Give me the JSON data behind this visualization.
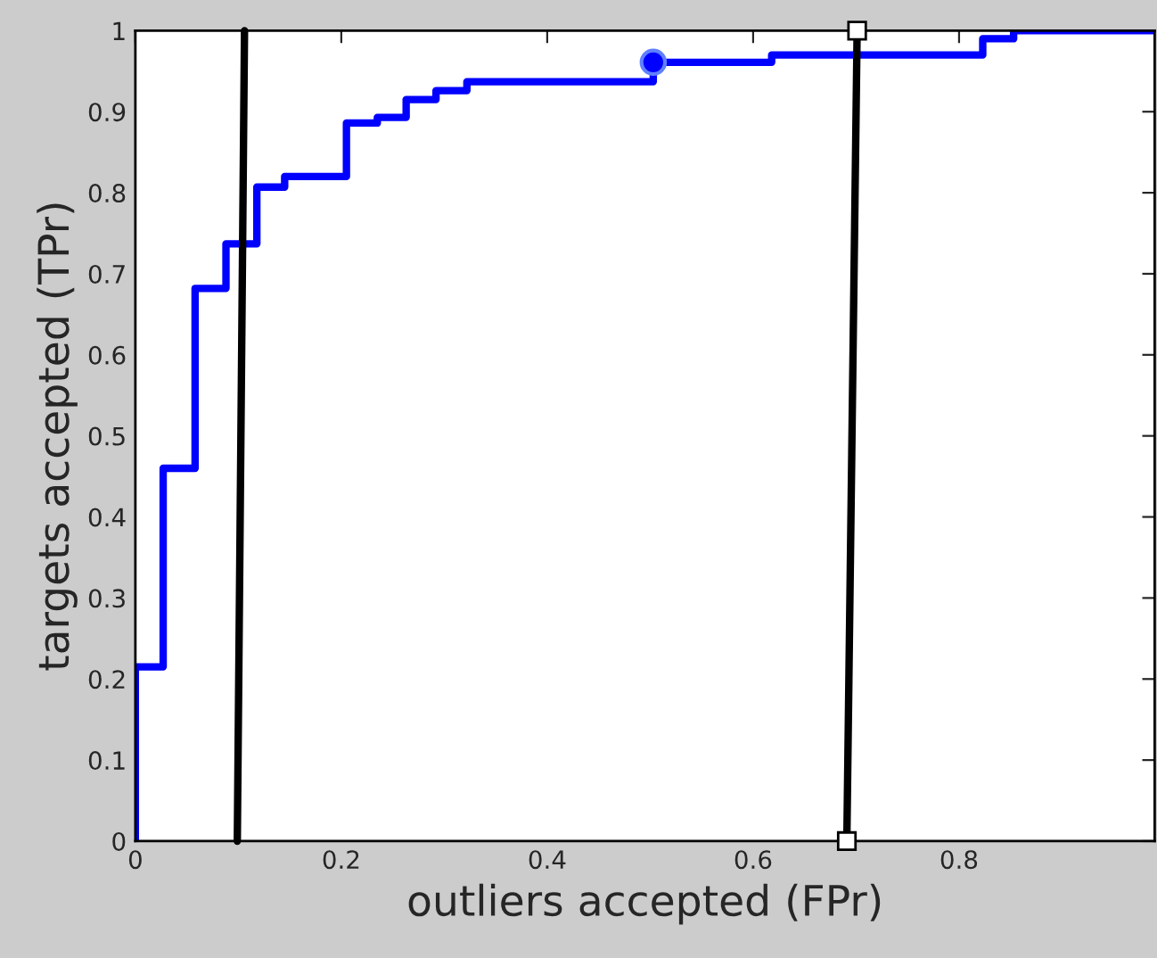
{
  "chart_data": {
    "type": "step",
    "xlabel": "outliers accepted (FPr)",
    "ylabel": "targets accepted (TPr)",
    "xlim": [
      0,
      0.99
    ],
    "ylim": [
      0,
      1
    ],
    "xticks": [
      0,
      0.2,
      0.4,
      0.6,
      0.8
    ],
    "yticks": [
      0,
      0.1,
      0.2,
      0.3,
      0.4,
      0.5,
      0.6,
      0.7,
      0.8,
      0.9,
      1
    ],
    "grid": false,
    "series": [
      {
        "color": "#0000ff",
        "x": [
          0,
          0,
          0.027,
          0.058,
          0.088,
          0.118,
          0.145,
          0.205,
          0.235,
          0.263,
          0.292,
          0.322,
          0.503,
          0.618,
          0.823,
          0.853,
          0.99
        ],
        "values": [
          0,
          0.215,
          0.46,
          0.682,
          0.737,
          0.807,
          0.82,
          0.886,
          0.893,
          0.915,
          0.926,
          0.937,
          0.961,
          0.97,
          0.99,
          1.0,
          1.0
        ]
      },
      {
        "type": "scatter",
        "color": "#0000ff",
        "marker": "circle",
        "x": [
          0.503
        ],
        "values": [
          0.961
        ]
      },
      {
        "type": "line",
        "color": "#000000",
        "marker": "none",
        "x": [
          0.099,
          0.106
        ],
        "values": [
          0,
          1
        ]
      },
      {
        "type": "line",
        "color": "#000000",
        "marker": "square",
        "x": [
          0.691,
          0.701
        ],
        "values": [
          0,
          1
        ]
      }
    ]
  }
}
